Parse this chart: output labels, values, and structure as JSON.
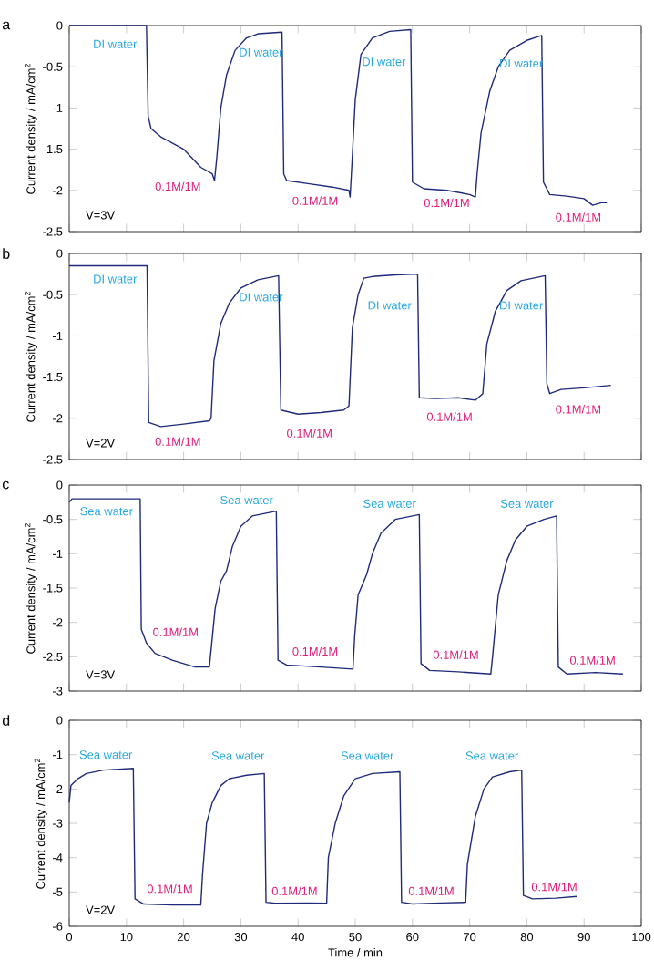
{
  "chart_data": [
    {
      "type": "line",
      "ylabel": "Current density / mA/cm$^{2}$",
      "xlim": [
        0,
        100
      ],
      "xticks": [
        0,
        10,
        20,
        30,
        40,
        50,
        60,
        70,
        80,
        90,
        100
      ],
      "ylim": [
        -2.5,
        0
      ],
      "yticks": [
        -2.5,
        -2,
        -1.5,
        -1,
        -0.5,
        0
      ],
      "tick_labels": "y",
      "series": [
        {
          "color": "#1f2a7a",
          "x": [
            0,
            13.5,
            13.8,
            14.3,
            16,
            20,
            23,
            25,
            25.4,
            25.8,
            26.5,
            27.5,
            29,
            31,
            33,
            37.2,
            37.5,
            38,
            42,
            46,
            48.9,
            49.1,
            49.4,
            50,
            51,
            53,
            56,
            59.7,
            60,
            62,
            66,
            70,
            71,
            71.3,
            72,
            73.5,
            75,
            77,
            80,
            82.6,
            82.9,
            84,
            87,
            90,
            91.5,
            93,
            94
          ],
          "values": [
            0,
            0,
            -1.1,
            -1.25,
            -1.35,
            -1.5,
            -1.72,
            -1.8,
            -1.88,
            -1.6,
            -1.0,
            -0.6,
            -0.3,
            -0.15,
            -0.1,
            -0.08,
            -1.8,
            -1.88,
            -1.92,
            -1.96,
            -2.0,
            -2.08,
            -1.7,
            -0.9,
            -0.35,
            -0.15,
            -0.07,
            -0.05,
            -1.9,
            -1.98,
            -2.0,
            -2.05,
            -2.08,
            -1.8,
            -1.3,
            -0.8,
            -0.5,
            -0.3,
            -0.18,
            -0.12,
            -1.9,
            -2.05,
            -2.07,
            -2.1,
            -2.18,
            -2.15,
            -2.15
          ]
        }
      ],
      "annotations": [
        "a",
        "V=3V",
        "DI water",
        "0.1M/1M",
        "DI water",
        "0.1M/1M",
        "DI water",
        "0.1M/1M",
        "DI water",
        "0.1M/1M"
      ]
    },
    {
      "type": "line",
      "ylabel": "Current density / mA/cm$^{2}$",
      "xlim": [
        0,
        100
      ],
      "xticks": [
        0,
        10,
        20,
        30,
        40,
        50,
        60,
        70,
        80,
        90,
        100
      ],
      "ylim": [
        -2.5,
        0
      ],
      "yticks": [
        -2.5,
        -2,
        -1.5,
        -1,
        -0.5,
        0
      ],
      "tick_labels": "y",
      "series": [
        {
          "color": "#1f2a7a",
          "x": [
            0,
            13.6,
            13.9,
            16,
            20,
            24.5,
            24.8,
            25.3,
            26.5,
            28,
            30,
            33,
            36.6,
            37,
            40,
            44,
            48,
            48.9,
            49.5,
            50.5,
            51.5,
            53,
            57,
            60.9,
            61.2,
            64,
            68,
            71,
            72.3,
            73,
            74.5,
            76.5,
            79,
            83.2,
            83.5,
            84,
            86,
            90,
            94.7
          ],
          "values": [
            -0.15,
            -0.15,
            -2.05,
            -2.1,
            -2.07,
            -2.03,
            -2.0,
            -1.3,
            -0.85,
            -0.6,
            -0.42,
            -0.32,
            -0.27,
            -1.9,
            -1.95,
            -1.93,
            -1.9,
            -1.85,
            -0.9,
            -0.5,
            -0.3,
            -0.28,
            -0.26,
            -0.25,
            -1.75,
            -1.76,
            -1.75,
            -1.78,
            -1.7,
            -1.1,
            -0.7,
            -0.45,
            -0.33,
            -0.27,
            -1.58,
            -1.7,
            -1.65,
            -1.63,
            -1.6
          ]
        }
      ],
      "annotations": [
        "b",
        "V=2V",
        "DI water",
        "0.1M/1M",
        "DI water",
        "0.1M/1M",
        "DI water",
        "0.1M/1M",
        "DI water",
        "0.1M/1M"
      ]
    },
    {
      "type": "line",
      "ylabel": "Current density / mA/cm$^{2}$",
      "xlim": [
        0,
        100
      ],
      "xticks": [
        0,
        10,
        20,
        30,
        40,
        50,
        60,
        70,
        80,
        90,
        100
      ],
      "ylim": [
        -3,
        0
      ],
      "yticks": [
        -3,
        -2.5,
        -2,
        -1.5,
        -1,
        -0.5,
        0
      ],
      "tick_labels": "y",
      "series": [
        {
          "color": "#1f2a7a",
          "x": [
            0,
            0.5,
            12.4,
            12.6,
            13.5,
            15,
            18,
            22,
            24.5,
            24.8,
            25.5,
            26.5,
            27.5,
            28.5,
            30,
            32,
            36.2,
            36.5,
            38,
            44,
            49.6,
            49.9,
            50.5,
            52,
            53,
            54.5,
            57,
            61.2,
            61.5,
            63,
            68,
            73.7,
            74,
            75,
            76.5,
            78,
            80,
            83,
            85.2,
            85.5,
            87,
            92,
            96.8
          ],
          "values": [
            -0.25,
            -0.2,
            -0.2,
            -2.1,
            -2.3,
            -2.45,
            -2.55,
            -2.65,
            -2.65,
            -2.4,
            -1.8,
            -1.4,
            -1.25,
            -0.9,
            -0.6,
            -0.45,
            -0.38,
            -2.55,
            -2.62,
            -2.65,
            -2.68,
            -2.2,
            -1.6,
            -1.3,
            -1.0,
            -0.7,
            -0.5,
            -0.43,
            -2.6,
            -2.7,
            -2.72,
            -2.75,
            -2.5,
            -1.6,
            -1.1,
            -0.8,
            -0.6,
            -0.5,
            -0.45,
            -2.65,
            -2.75,
            -2.73,
            -2.75
          ]
        }
      ],
      "annotations": [
        "c",
        "V=3V",
        "Sea water",
        "0.1M/1M",
        "Sea water",
        "0.1M/1M",
        "Sea water",
        "0.1M/1M",
        "Sea water",
        "0.1M/1M"
      ]
    },
    {
      "type": "line",
      "ylabel": "Current density / mA/cm$^{2}$",
      "xlabel": "Time / min",
      "xlim": [
        0,
        100
      ],
      "xticks": [
        0,
        10,
        20,
        30,
        40,
        50,
        60,
        70,
        80,
        90,
        100
      ],
      "ylim": [
        -6,
        0
      ],
      "yticks": [
        -6,
        -5,
        -4,
        -3,
        -2,
        -1,
        0
      ],
      "series": [
        {
          "color": "#1f2a7a",
          "x": [
            0,
            0.3,
            1.5,
            3,
            6,
            11.2,
            11.5,
            13,
            18,
            23,
            23.3,
            24,
            25,
            26.5,
            28,
            31,
            34.1,
            34.4,
            36,
            42,
            45,
            45.3,
            46.5,
            48,
            50,
            53,
            57.8,
            58.1,
            60,
            65,
            69.3,
            69.6,
            71,
            72.5,
            74,
            77,
            79.1,
            79.4,
            81,
            85,
            88.8
          ],
          "values": [
            -2.4,
            -1.9,
            -1.7,
            -1.55,
            -1.45,
            -1.4,
            -5.2,
            -5.35,
            -5.38,
            -5.38,
            -4.5,
            -3.0,
            -2.4,
            -1.9,
            -1.7,
            -1.6,
            -1.55,
            -5.3,
            -5.33,
            -5.32,
            -5.33,
            -4.0,
            -3.0,
            -2.2,
            -1.7,
            -1.55,
            -1.5,
            -5.3,
            -5.35,
            -5.32,
            -5.3,
            -4.2,
            -2.8,
            -2.0,
            -1.65,
            -1.5,
            -1.45,
            -5.1,
            -5.2,
            -5.18,
            -5.13
          ]
        }
      ],
      "annotations": [
        "d",
        "V=2V",
        "Sea water",
        "0.1M/1M",
        "Sea water",
        "0.1M/1M",
        "Sea water",
        "0.1M/1M",
        "Sea water",
        "0.1M/1M"
      ]
    }
  ]
}
